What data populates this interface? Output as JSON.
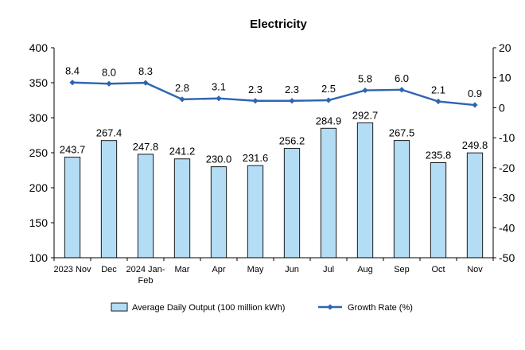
{
  "chart_data": {
    "type": "bar",
    "title": "Electricity",
    "categories": [
      "2023 Nov",
      "Dec",
      "2024 Jan-Feb",
      "Mar",
      "Apr",
      "May",
      "Jun",
      "Jul",
      "Aug",
      "Sep",
      "Oct",
      "Nov"
    ],
    "category_lines": [
      [
        "2023 Nov"
      ],
      [
        "Dec"
      ],
      [
        "2024 Jan-",
        "Feb"
      ],
      [
        "Mar"
      ],
      [
        "Apr"
      ],
      [
        "May"
      ],
      [
        "Jun"
      ],
      [
        "Jul"
      ],
      [
        "Aug"
      ],
      [
        "Sep"
      ],
      [
        "Oct"
      ],
      [
        "Nov"
      ]
    ],
    "series": [
      {
        "name": "Average Daily Output (100 million kWh)",
        "type": "bar",
        "axis": "left",
        "color": "#b3dcf5",
        "edge_color": "#1a1a1a",
        "values": [
          243.7,
          267.4,
          247.8,
          241.2,
          230.0,
          231.6,
          256.2,
          284.9,
          292.7,
          267.5,
          235.8,
          249.8
        ],
        "labels": [
          "243.7",
          "267.4",
          "247.8",
          "241.2",
          "230.0",
          "231.6",
          "256.2",
          "284.9",
          "292.7",
          "267.5",
          "235.8",
          "249.8"
        ]
      },
      {
        "name": "Growth Rate (%)",
        "type": "line",
        "axis": "right",
        "color": "#2f65b0",
        "values": [
          8.4,
          8.0,
          8.3,
          2.8,
          3.1,
          2.3,
          2.3,
          2.5,
          5.8,
          6.0,
          2.1,
          0.9
        ],
        "labels": [
          "8.4",
          "8.0",
          "8.3",
          "2.8",
          "3.1",
          "2.3",
          "2.3",
          "2.5",
          "5.8",
          "6.0",
          "2.1",
          "0.9"
        ]
      }
    ],
    "y_left": {
      "min": 100,
      "max": 400,
      "ticks": [
        "100",
        "150",
        "200",
        "250",
        "300",
        "350",
        "400"
      ]
    },
    "y_right": {
      "min": -50,
      "max": 20,
      "ticks": [
        "-50",
        "-40",
        "-30",
        "-20",
        "-10",
        "0",
        "10",
        "20"
      ]
    },
    "grid": false,
    "legend_position": "bottom"
  }
}
